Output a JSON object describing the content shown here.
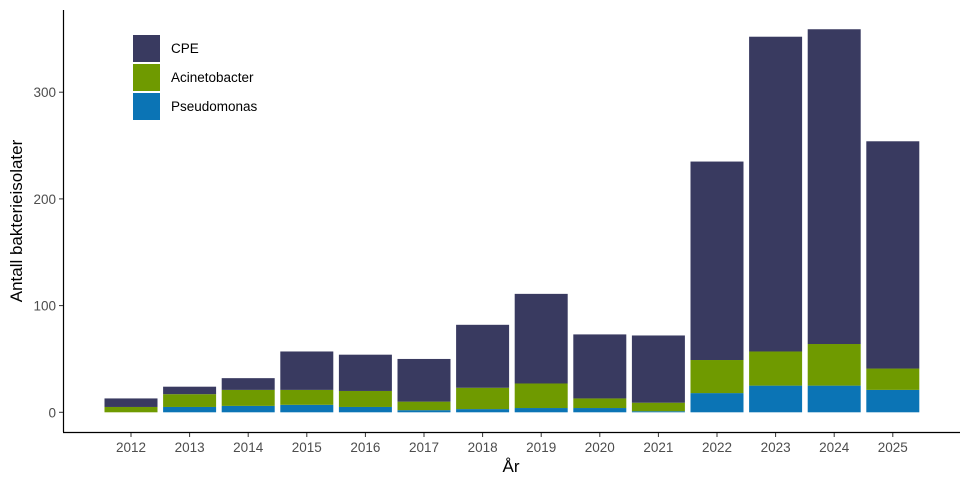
{
  "chart_data": {
    "type": "bar",
    "stacked": true,
    "title": "",
    "xlabel": "År",
    "ylabel": "Antall bakterieisolater",
    "ylim": [
      0,
      377
    ],
    "yticks": [
      0,
      100,
      200,
      300
    ],
    "grid": false,
    "legend_position": "top-left",
    "categories": [
      "2012",
      "2013",
      "2014",
      "2015",
      "2016",
      "2017",
      "2018",
      "2019",
      "2020",
      "2021",
      "2022",
      "2023",
      "2024",
      "2025"
    ],
    "series": [
      {
        "name": "Pseudomonas",
        "color": "#0B74B5",
        "values": [
          0,
          5,
          6,
          7,
          5,
          2,
          3,
          4,
          4,
          1,
          18,
          25,
          25,
          21
        ]
      },
      {
        "name": "Acinetobacter",
        "color": "#6F9A00",
        "values": [
          5,
          12,
          15,
          14,
          15,
          8,
          20,
          23,
          9,
          8,
          31,
          32,
          39,
          20
        ]
      },
      {
        "name": "CPE",
        "color": "#393A60",
        "values": [
          8,
          7,
          11,
          36,
          34,
          40,
          59,
          84,
          60,
          63,
          186,
          295,
          295,
          213
        ]
      }
    ],
    "legend_order": [
      "CPE",
      "Acinetobacter",
      "Pseudomonas"
    ]
  }
}
